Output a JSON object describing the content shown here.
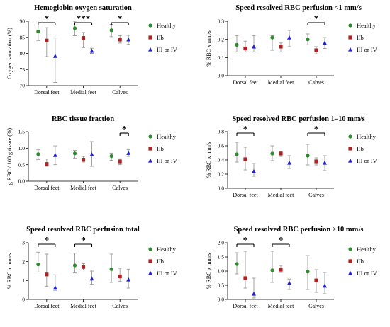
{
  "figure": {
    "colors": {
      "Healthy": "#2e8b2e",
      "IIb": "#b22222",
      "III or IV": "#2222cc",
      "errbar": "#999999"
    },
    "legend": [
      "Healthy",
      "IIb",
      "III or IV"
    ]
  },
  "chart_data": [
    {
      "type": "scatter",
      "title": "Hemoglobin oxygen saturation",
      "ylabel": "Oxygen saturation (%)",
      "ylim": [
        70,
        90
      ],
      "yticks": [
        70,
        75,
        80,
        85,
        90
      ],
      "categories": [
        "Dorsal feet",
        "Medial feet",
        "Calves"
      ],
      "legend_position": "right",
      "series": [
        {
          "name": "Healthy",
          "values": [
            86.8,
            87.8,
            87.2
          ],
          "err_low": [
            84.0,
            85.5,
            85.2
          ],
          "err_high": [
            88.8,
            90.0,
            89.0
          ]
        },
        {
          "name": "IIb",
          "values": [
            84.0,
            84.8,
            84.3
          ],
          "err_low": [
            79.0,
            81.8,
            83.2
          ],
          "err_high": [
            88.0,
            86.5,
            85.5
          ]
        },
        {
          "name": "III or IV",
          "values": [
            79.2,
            80.8,
            84.3
          ],
          "err_low": [
            71.0,
            80.0,
            82.8
          ],
          "err_high": [
            84.8,
            81.6,
            85.6
          ]
        }
      ],
      "significance": [
        {
          "from": "Healthy",
          "to": "III or IV",
          "group": 0,
          "label": "*"
        },
        {
          "from": "Healthy",
          "to": "III or IV",
          "group": 1,
          "label": "***"
        },
        {
          "from": "Healthy",
          "to": "III or IV",
          "group": 2,
          "label": "*"
        }
      ]
    },
    {
      "type": "scatter",
      "title": "Speed resolved RBC perfusion <1 mm/s",
      "ylabel": "% RBC x mm/s",
      "ylim": [
        0,
        0.3
      ],
      "yticks": [
        0,
        0.1,
        0.2,
        0.3
      ],
      "ytick_labels": [
        "0.0",
        "0.1",
        "0.2",
        "0.3"
      ],
      "categories": [
        "Dorsal feet",
        "Medial feet",
        "Calves"
      ],
      "legend_position": "right",
      "series": [
        {
          "name": "Healthy",
          "values": [
            0.17,
            0.21,
            0.2
          ],
          "err_low": [
            0.13,
            0.14,
            0.17
          ],
          "err_high": [
            0.22,
            0.22,
            0.23
          ]
        },
        {
          "name": "IIb",
          "values": [
            0.15,
            0.16,
            0.14
          ],
          "err_low": [
            0.13,
            0.13,
            0.12
          ],
          "err_high": [
            0.19,
            0.18,
            0.16
          ]
        },
        {
          "name": "III or IV",
          "values": [
            0.16,
            0.21,
            0.18
          ],
          "err_low": [
            0.13,
            0.16,
            0.15
          ],
          "err_high": [
            0.22,
            0.25,
            0.21
          ]
        }
      ],
      "significance": [
        {
          "from": "Healthy",
          "to": "III or IV",
          "group": 2,
          "label": "*"
        }
      ]
    },
    {
      "type": "scatter",
      "title": "RBC tissue fraction",
      "ylabel": "g RBC / 100 g tissue (%)",
      "ylim": [
        0,
        1.5
      ],
      "yticks": [
        0,
        0.5,
        1.0,
        1.5
      ],
      "ytick_labels": [
        "0.0",
        "0.5",
        "1.0",
        "1.5"
      ],
      "categories": [
        "Dorsal feet",
        "Medial feet",
        "Calves"
      ],
      "legend_position": "right",
      "series": [
        {
          "name": "Healthy",
          "values": [
            0.82,
            0.84,
            0.76
          ],
          "err_low": [
            0.65,
            0.7,
            0.63
          ],
          "err_high": [
            0.95,
            0.93,
            0.85
          ]
        },
        {
          "name": "IIb",
          "values": [
            0.52,
            0.65,
            0.6
          ],
          "err_low": [
            0.45,
            0.58,
            0.5
          ],
          "err_high": [
            0.67,
            0.75,
            0.68
          ]
        },
        {
          "name": "III or IV",
          "values": [
            0.79,
            0.81,
            0.85
          ],
          "err_low": [
            0.5,
            0.45,
            0.75
          ],
          "err_high": [
            1.07,
            1.2,
            0.95
          ]
        }
      ],
      "significance": [
        {
          "from": "IIb",
          "to": "III or IV",
          "group": 2,
          "label": "*"
        }
      ]
    },
    {
      "type": "scatter",
      "title": "Speed resolved RBC perfusion 1–10 mm/s",
      "ylabel": "% RBC x mm/s",
      "ylim": [
        0,
        0.8
      ],
      "yticks": [
        0,
        0.2,
        0.4,
        0.6,
        0.8
      ],
      "ytick_labels": [
        "0.0",
        "0.2",
        "0.4",
        "0.6",
        "0.8"
      ],
      "categories": [
        "Dorsal feet",
        "Medial feet",
        "Calves"
      ],
      "legend_position": "right",
      "series": [
        {
          "name": "Healthy",
          "values": [
            0.48,
            0.49,
            0.46
          ],
          "err_low": [
            0.37,
            0.39,
            0.33
          ],
          "err_high": [
            0.65,
            0.6,
            0.62
          ]
        },
        {
          "name": "IIb",
          "values": [
            0.41,
            0.49,
            0.38
          ],
          "err_low": [
            0.26,
            0.45,
            0.33
          ],
          "err_high": [
            0.58,
            0.52,
            0.43
          ]
        },
        {
          "name": "III or IV",
          "values": [
            0.24,
            0.36,
            0.36
          ],
          "err_low": [
            0.17,
            0.28,
            0.25
          ],
          "err_high": [
            0.35,
            0.46,
            0.46
          ]
        }
      ],
      "significance": [
        {
          "from": "Healthy",
          "to": "III or IV",
          "group": 0,
          "label": "*"
        },
        {
          "from": "Healthy",
          "to": "III or IV",
          "group": 2,
          "label": "*"
        }
      ]
    },
    {
      "type": "scatter",
      "title": "Speed resolved RBC perfusion total",
      "ylabel": "% RBC x mm/s",
      "ylim": [
        0,
        3
      ],
      "yticks": [
        0,
        1,
        2,
        3
      ],
      "categories": [
        "Dorsal feet",
        "Medial feet",
        "Calves"
      ],
      "legend_position": "right",
      "series": [
        {
          "name": "Healthy",
          "values": [
            1.85,
            1.8,
            1.6
          ],
          "err_low": [
            1.45,
            1.4,
            0.9
          ],
          "err_high": [
            2.5,
            2.45,
            2.4
          ]
        },
        {
          "name": "IIb",
          "values": [
            1.32,
            1.72,
            1.22
          ],
          "err_low": [
            0.7,
            1.55,
            0.95
          ],
          "err_high": [
            2.4,
            1.9,
            1.65
          ]
        },
        {
          "name": "III or IV",
          "values": [
            0.62,
            1.1,
            1.05
          ],
          "err_low": [
            0.48,
            0.8,
            0.6
          ],
          "err_high": [
            1.3,
            1.5,
            1.6
          ]
        }
      ],
      "significance": [
        {
          "from": "Healthy",
          "to": "III or IV",
          "group": 0,
          "label": "*"
        },
        {
          "from": "Healthy",
          "to": "III or IV",
          "group": 1,
          "label": "*"
        }
      ]
    },
    {
      "type": "scatter",
      "title": "Speed resolved RBC perfusion >10 mm/s",
      "ylabel": "% RBC x mm/s",
      "ylim": [
        0,
        2
      ],
      "yticks": [
        0,
        0.5,
        1.0,
        1.5,
        2.0
      ],
      "ytick_labels": [
        "0.0",
        "0.5",
        "1.0",
        "1.5",
        "2.0"
      ],
      "categories": [
        "Dorsal feet",
        "Medial feet",
        "Calves"
      ],
      "legend_position": "right",
      "series": [
        {
          "name": "Healthy",
          "values": [
            1.25,
            1.03,
            0.98
          ],
          "err_low": [
            0.9,
            0.6,
            0.35
          ],
          "err_high": [
            1.65,
            1.7,
            1.55
          ]
        },
        {
          "name": "IIb",
          "values": [
            0.75,
            1.05,
            0.67
          ],
          "err_low": [
            0.4,
            0.95,
            0.25
          ],
          "err_high": [
            1.7,
            1.2,
            1.05
          ]
        },
        {
          "name": "III or IV",
          "values": [
            0.2,
            0.58,
            0.48
          ],
          "err_low": [
            0.05,
            0.35,
            0.2
          ],
          "err_high": [
            0.75,
            0.72,
            0.95
          ]
        }
      ],
      "significance": [
        {
          "from": "Healthy",
          "to": "III or IV",
          "group": 0,
          "label": "*"
        },
        {
          "from": "Healthy",
          "to": "III or IV",
          "group": 1,
          "label": "*"
        }
      ]
    }
  ]
}
